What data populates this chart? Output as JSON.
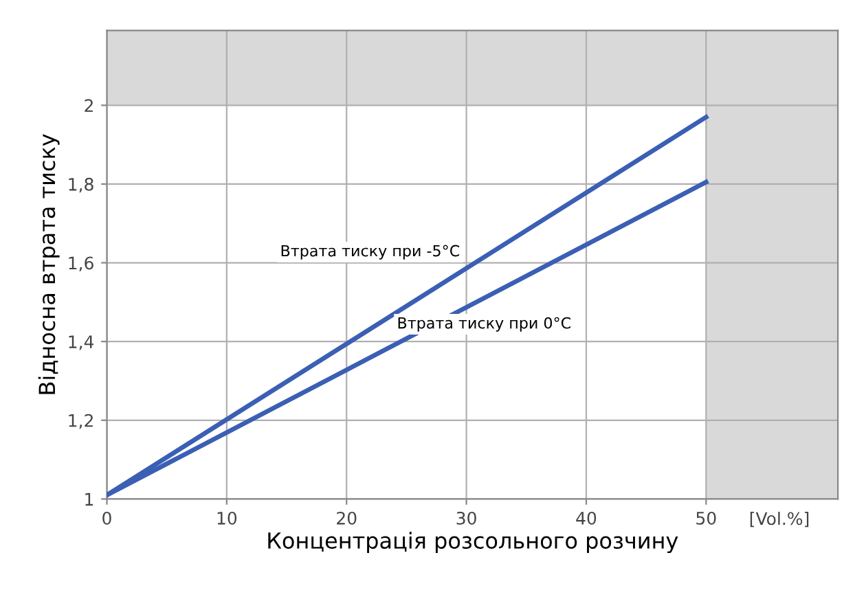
{
  "chart_data": {
    "type": "line",
    "xlabel": "Концентрація розсольного розчину",
    "ylabel": "Відносна втрата тиску",
    "x": [
      0,
      50
    ],
    "series": [
      {
        "color": "#3b5fb4",
        "values": [
          1.01,
          1.97
        ]
      },
      {
        "color": "#3b5fb4",
        "values": [
          1.01,
          1.805
        ]
      }
    ],
    "xlim": [
      0,
      61
    ],
    "ylim": [
      1,
      2.19
    ],
    "xticks": [
      0,
      10,
      20,
      30,
      40,
      50
    ],
    "yticks": [
      {
        "value": 1,
        "label": "1"
      },
      {
        "value": 1.2,
        "label": "1,2"
      },
      {
        "value": 1.4,
        "label": "1,4"
      },
      {
        "value": 1.6,
        "label": "1,6"
      },
      {
        "value": 1.8,
        "label": "1,8"
      },
      {
        "value": 2,
        "label": "2"
      }
    ],
    "bands": [
      {
        "axis": "x",
        "from": 50,
        "to": 61,
        "color": "#d9d9d9"
      },
      {
        "axis": "y",
        "from": 2,
        "to": 2.19,
        "color": "#d9d9d9"
      }
    ],
    "annotations": [
      "Втрата тиску при -5°C",
      "Втрата тиску при 0°C",
      "[Vol.%]"
    ],
    "grid": true,
    "line_style": "solid"
  }
}
